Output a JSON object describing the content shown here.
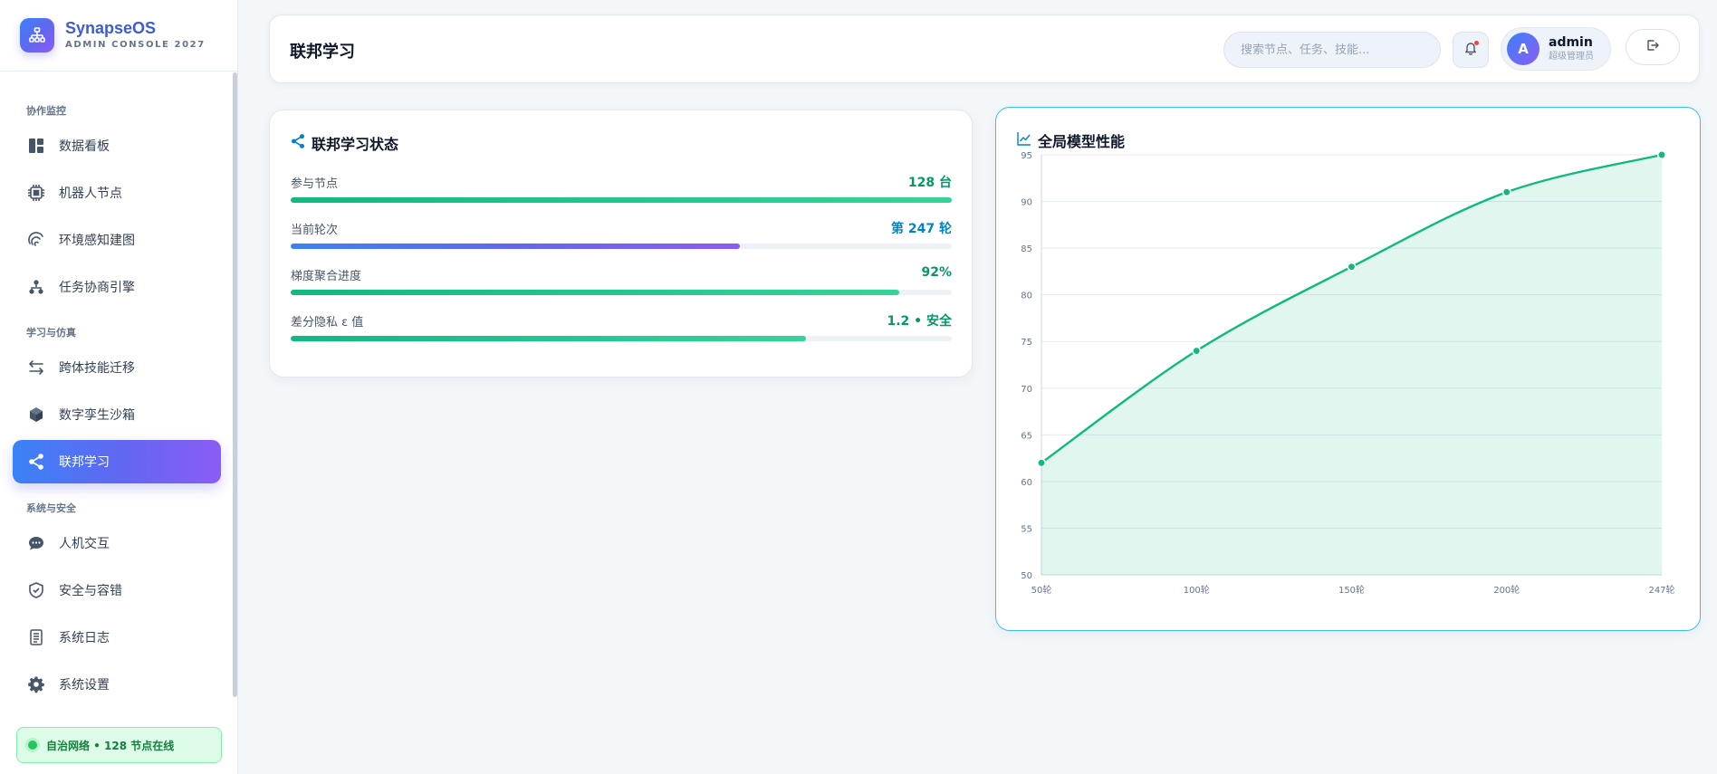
{
  "brand": {
    "name": "SynapseOS",
    "subtitle": "ADMIN CONSOLE 2027"
  },
  "sidebar": {
    "sections": [
      {
        "title": "协作监控"
      },
      {
        "title": "学习与仿真"
      },
      {
        "title": "系统与安全"
      }
    ],
    "items": [
      {
        "label": "数据看板",
        "icon": "dashboard-icon"
      },
      {
        "label": "机器人节点",
        "icon": "chip-icon"
      },
      {
        "label": "环境感知建图",
        "icon": "radar-icon"
      },
      {
        "label": "任务协商引擎",
        "icon": "hierarchy-icon"
      },
      {
        "label": "跨体技能迁移",
        "icon": "exchange-icon"
      },
      {
        "label": "数字孪生沙箱",
        "icon": "cube-icon"
      },
      {
        "label": "联邦学习",
        "icon": "share-icon",
        "active": true
      },
      {
        "label": "人机交互",
        "icon": "chat-icon"
      },
      {
        "label": "安全与容错",
        "icon": "shield-icon"
      },
      {
        "label": "系统日志",
        "icon": "log-icon"
      },
      {
        "label": "系统设置",
        "icon": "gear-icon"
      }
    ],
    "status": "自治网络 • 128 节点在线"
  },
  "header": {
    "title": "联邦学习",
    "search_placeholder": "搜索节点、任务、技能...",
    "user": {
      "initial": "A",
      "name": "admin",
      "role": "超级管理员"
    }
  },
  "status_card": {
    "title": "联邦学习状态",
    "metrics": [
      {
        "label": "参与节点",
        "value": "128 台",
        "progress": 1.0,
        "value_color": "#059669"
      },
      {
        "label": "当前轮次",
        "value": "第 247 轮",
        "progress": 0.68,
        "value_color": "#0284c7"
      },
      {
        "label": "梯度聚合进度",
        "value": "92%",
        "progress": 0.92,
        "value_color": "#059669"
      },
      {
        "label": "差分隐私 ε 值",
        "value": "1.2 • 安全",
        "progress": 0.78,
        "value_color": "#059669"
      }
    ]
  },
  "chart_card": {
    "title": "全局模型性能"
  },
  "chart_data": {
    "type": "area",
    "title": "全局模型性能",
    "x": [
      "50轮",
      "100轮",
      "150轮",
      "200轮",
      "247轮"
    ],
    "series": [
      {
        "values": [
          62,
          74,
          83,
          91,
          95
        ]
      }
    ],
    "y_ticks": [
      50,
      55,
      60,
      65,
      70,
      75,
      80,
      85,
      90,
      95
    ],
    "ylim": [
      50,
      95
    ],
    "grid": true,
    "color": "#10b981"
  },
  "colors": {
    "accent": "#6366f1",
    "brand": "#3b5bd9",
    "success": "#10b981",
    "info": "#0284c7"
  }
}
